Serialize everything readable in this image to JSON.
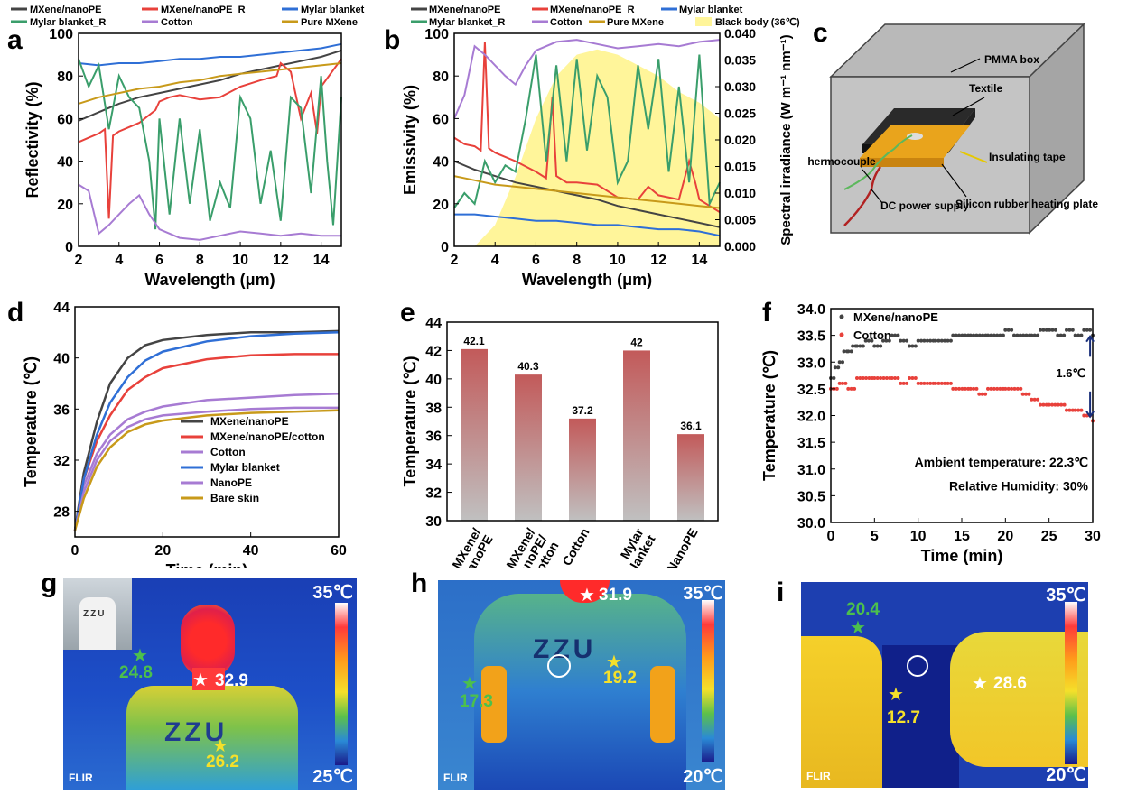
{
  "panels": [
    "a",
    "b",
    "c",
    "d",
    "e",
    "f",
    "g",
    "h",
    "i"
  ],
  "colors": {
    "mxene_nanope": "#444444",
    "mxene_nanope_r": "#e8413b",
    "mylar": "#2f6fd6",
    "mylar_r": "#3a9e6b",
    "cotton": "#a77bd3",
    "pure_mxene": "#c89a1a",
    "blackbody": "#fff59a",
    "bar_top": "#c25a5a",
    "bar_bottom": "#c0c0c0"
  },
  "chart_data": [
    {
      "panel": "a",
      "type": "line",
      "xlabel": "Wavelength (μm)",
      "ylabel": "Reflectivity (%)",
      "xlim": [
        2,
        15
      ],
      "ylim": [
        0,
        100
      ],
      "xticks": [
        "2",
        "4",
        "6",
        "8",
        "10",
        "12",
        "14"
      ],
      "yticks": [
        "0",
        "20",
        "40",
        "60",
        "80",
        "100"
      ],
      "legend": [
        "MXene/nanoPE",
        "MXene/nanoPE_R",
        "Mylar blanket",
        "Mylar blanket_R",
        "Cotton",
        "Pure MXene"
      ],
      "series": [
        {
          "name": "MXene/nanoPE",
          "x": [
            2,
            3,
            4,
            5,
            6,
            7,
            8,
            9,
            10,
            11,
            12,
            13,
            14,
            15
          ],
          "y": [
            59,
            63,
            67,
            70,
            72,
            74,
            76,
            78,
            81,
            83,
            85,
            87,
            89,
            92
          ]
        },
        {
          "name": "MXene/nanoPE_R",
          "x": [
            2,
            2.5,
            3,
            3.3,
            3.5,
            3.7,
            4,
            5,
            5.8,
            6,
            6.5,
            7,
            8,
            9,
            10,
            11,
            11.8,
            12,
            12.5,
            13,
            13.5,
            13.8,
            14,
            15
          ],
          "y": [
            49,
            51,
            53,
            55,
            13,
            52,
            54,
            58,
            64,
            68,
            70,
            71,
            69,
            70,
            75,
            78,
            80,
            86,
            82,
            60,
            72,
            53,
            75,
            88
          ]
        },
        {
          "name": "Mylar blanket",
          "x": [
            2,
            3,
            4,
            5,
            6,
            7,
            8,
            9,
            10,
            11,
            12,
            13,
            14,
            15
          ],
          "y": [
            86,
            85,
            86,
            86,
            87,
            88,
            88,
            89,
            89,
            90,
            91,
            92,
            93,
            95
          ]
        },
        {
          "name": "Mylar blanket_R",
          "x": [
            2,
            2.5,
            3,
            3.5,
            4,
            4.5,
            5,
            5.5,
            5.8,
            6,
            6.5,
            7,
            7.5,
            8,
            8.5,
            9,
            9.5,
            10,
            10.5,
            11,
            11.5,
            12,
            12.5,
            13,
            13.5,
            14,
            14.3,
            14.6,
            15
          ],
          "y": [
            88,
            75,
            85,
            55,
            80,
            70,
            65,
            40,
            8,
            60,
            15,
            60,
            20,
            55,
            12,
            30,
            18,
            70,
            60,
            20,
            45,
            12,
            70,
            65,
            25,
            80,
            40,
            10,
            70
          ]
        },
        {
          "name": "Cotton",
          "x": [
            2,
            2.5,
            3,
            3.5,
            4,
            4.5,
            5,
            5.5,
            6,
            7,
            8,
            9,
            10,
            11,
            12,
            13,
            14,
            15
          ],
          "y": [
            29,
            26,
            6,
            10,
            15,
            20,
            24,
            15,
            8,
            4,
            3,
            5,
            7,
            6,
            5,
            6,
            5,
            5
          ]
        },
        {
          "name": "Pure MXene",
          "x": [
            2,
            3,
            4,
            5,
            6,
            7,
            8,
            9,
            10,
            11,
            12,
            13,
            14,
            15
          ],
          "y": [
            67,
            70,
            72,
            74,
            75,
            77,
            78,
            80,
            81,
            82,
            83,
            84,
            85,
            86
          ]
        }
      ]
    },
    {
      "panel": "b",
      "type": "line",
      "xlabel": "Wavelength (μm)",
      "ylabel": "Emissivity (%)",
      "y2label": "Spectral irradiance (W m⁻¹ nm⁻¹)",
      "xlim": [
        2,
        15
      ],
      "ylim": [
        0,
        100
      ],
      "y2lim": [
        0,
        0.04
      ],
      "xticks": [
        "2",
        "4",
        "6",
        "8",
        "10",
        "12",
        "14"
      ],
      "yticks": [
        "0",
        "20",
        "40",
        "60",
        "80",
        "100"
      ],
      "y2ticks": [
        "0.000",
        "0.005",
        "0.010",
        "0.015",
        "0.020",
        "0.025",
        "0.030",
        "0.035",
        "0.040"
      ],
      "legend": [
        "MXene/nanoPE",
        "MXene/nanoPE_R",
        "Mylar blanket",
        "Mylar blanket_R",
        "Cotton",
        "Pure MXene",
        "Black body (36℃)"
      ],
      "series": [
        {
          "name": "MXene/nanoPE",
          "x": [
            2,
            3,
            4,
            5,
            6,
            7,
            8,
            9,
            10,
            11,
            12,
            13,
            14,
            15
          ],
          "y": [
            40,
            36,
            33,
            30,
            28,
            26,
            24,
            22,
            19,
            17,
            15,
            13,
            11,
            9
          ]
        },
        {
          "name": "MXene/nanoPE_R",
          "x": [
            2,
            2.5,
            3,
            3.3,
            3.5,
            3.7,
            4,
            5,
            6,
            6.5,
            6.8,
            7,
            7.5,
            8,
            9,
            10,
            11,
            11.5,
            12,
            13,
            13.5,
            13.8,
            14,
            15
          ],
          "y": [
            51,
            48,
            47,
            45,
            96,
            46,
            44,
            40,
            35,
            32,
            70,
            33,
            30,
            30,
            29,
            23,
            22,
            28,
            24,
            22,
            40,
            30,
            22,
            16
          ]
        },
        {
          "name": "Mylar blanket",
          "x": [
            2,
            3,
            4,
            5,
            6,
            7,
            8,
            9,
            10,
            11,
            12,
            13,
            14,
            15
          ],
          "y": [
            15,
            15,
            14,
            13,
            12,
            12,
            11,
            10,
            10,
            9,
            8,
            8,
            7,
            5
          ]
        },
        {
          "name": "Mylar blanket_R",
          "x": [
            2,
            2.5,
            3,
            3.5,
            4,
            4.5,
            5,
            5.5,
            6,
            6.5,
            7,
            7.5,
            8,
            8.5,
            9,
            9.5,
            10,
            10.5,
            11,
            11.5,
            12,
            12.5,
            13,
            13.5,
            14,
            14.5,
            15
          ],
          "y": [
            18,
            25,
            20,
            40,
            30,
            38,
            35,
            60,
            90,
            40,
            85,
            40,
            88,
            45,
            80,
            70,
            30,
            40,
            85,
            55,
            88,
            35,
            75,
            30,
            90,
            20,
            30
          ]
        },
        {
          "name": "Cotton",
          "x": [
            2,
            2.5,
            3,
            3.5,
            4,
            4.5,
            5,
            5.5,
            6,
            7,
            8,
            9,
            10,
            11,
            12,
            13,
            14,
            15
          ],
          "y": [
            60,
            71,
            94,
            90,
            85,
            80,
            76,
            85,
            92,
            96,
            97,
            95,
            93,
            94,
            95,
            94,
            96,
            97
          ]
        },
        {
          "name": "Pure MXene",
          "x": [
            2,
            3,
            4,
            5,
            6,
            7,
            8,
            9,
            10,
            11,
            12,
            13,
            14,
            15
          ],
          "y": [
            33,
            31,
            29,
            28,
            27,
            26,
            25,
            24,
            23,
            22,
            21,
            20,
            19,
            18
          ]
        },
        {
          "name": "Black body (36℃)",
          "axis": "y2",
          "x": [
            3,
            4,
            5,
            6,
            7,
            8,
            9,
            10,
            11,
            12,
            13,
            14,
            15
          ],
          "y": [
            0.0,
            0.004,
            0.013,
            0.024,
            0.032,
            0.036,
            0.037,
            0.036,
            0.034,
            0.032,
            0.029,
            0.027,
            0.024
          ]
        }
      ]
    },
    {
      "panel": "d",
      "type": "line",
      "xlabel": "Time (min)",
      "ylabel": "Temperature (℃)",
      "xlim": [
        0,
        60
      ],
      "ylim": [
        26,
        44
      ],
      "xticks": [
        "0",
        "20",
        "40",
        "60"
      ],
      "yticks": [
        "28",
        "32",
        "36",
        "40",
        "44"
      ],
      "legend": [
        "MXene/nanoPE",
        "MXene/nanoPE/cotton",
        "Cotton",
        "Mylar blanket",
        "NanoPE",
        "Bare skin"
      ],
      "series": [
        {
          "name": "MXene/nanoPE",
          "x": [
            0,
            2,
            5,
            8,
            12,
            16,
            20,
            30,
            40,
            50,
            60
          ],
          "y": [
            26.5,
            31,
            35,
            38,
            40,
            41,
            41.4,
            41.8,
            42,
            42,
            42.1
          ]
        },
        {
          "name": "MXene/nanoPE/cotton",
          "x": [
            0,
            2,
            5,
            8,
            12,
            16,
            20,
            30,
            40,
            50,
            60
          ],
          "y": [
            26.5,
            30.5,
            33.5,
            35.5,
            37.5,
            38.5,
            39.2,
            39.9,
            40.2,
            40.3,
            40.3
          ]
        },
        {
          "name": "Cotton",
          "x": [
            0,
            2,
            5,
            8,
            12,
            16,
            20,
            30,
            40,
            50,
            60
          ],
          "y": [
            26.5,
            30,
            32.5,
            34,
            35.2,
            35.8,
            36.2,
            36.7,
            36.9,
            37.1,
            37.2
          ]
        },
        {
          "name": "Mylar blanket",
          "x": [
            0,
            2,
            5,
            8,
            12,
            16,
            20,
            30,
            40,
            50,
            60
          ],
          "y": [
            26.5,
            30.5,
            34,
            36.5,
            38.5,
            39.8,
            40.5,
            41.3,
            41.7,
            41.9,
            42
          ]
        },
        {
          "name": "NanoPE",
          "x": [
            0,
            2,
            5,
            8,
            12,
            16,
            20,
            30,
            40,
            50,
            60
          ],
          "y": [
            26.5,
            29.5,
            32,
            33.5,
            34.6,
            35.2,
            35.5,
            35.8,
            36,
            36.1,
            36.1
          ]
        },
        {
          "name": "Bare skin",
          "x": [
            0,
            2,
            5,
            8,
            12,
            16,
            20,
            30,
            40,
            50,
            60
          ],
          "y": [
            26.5,
            29,
            31.5,
            33,
            34.2,
            34.8,
            35.1,
            35.5,
            35.7,
            35.8,
            35.9
          ]
        }
      ]
    },
    {
      "panel": "e",
      "type": "bar",
      "ylabel": "Temperature (℃)",
      "ylim": [
        30,
        44
      ],
      "yticks": [
        "30",
        "32",
        "34",
        "36",
        "38",
        "40",
        "42",
        "44"
      ],
      "categories": [
        "MXene/ nanoPE",
        "MXene/ nanoPE/ cotton",
        "Cotton",
        "Mylar blanket",
        "NanoPE"
      ],
      "values": [
        42.1,
        40.3,
        37.2,
        42,
        36.1
      ],
      "labels": [
        "42.1",
        "40.3",
        "37.2",
        "42",
        "36.1"
      ]
    },
    {
      "panel": "f",
      "type": "scatter",
      "xlabel": "Time (min)",
      "ylabel": "Temperature (℃)",
      "xlim": [
        0,
        30
      ],
      "ylim": [
        30,
        34
      ],
      "xticks": [
        "0",
        "5",
        "10",
        "15",
        "20",
        "25",
        "30"
      ],
      "yticks": [
        "30.0",
        "30.5",
        "31.0",
        "31.5",
        "32.0",
        "32.5",
        "33.0",
        "33.5",
        "34.0"
      ],
      "legend": [
        "MXene/nanoPE",
        "Cotton"
      ],
      "annotations": [
        "1.6℃",
        "Ambient temperature: 22.3℃",
        "Relative Humidity: 30%"
      ],
      "series": [
        {
          "name": "MXene/nanoPE",
          "segments": [
            [
              0,
              32.7
            ],
            [
              0.5,
              32.9
            ],
            [
              1,
              33.0
            ],
            [
              1.5,
              33.2
            ],
            [
              2,
              33.2
            ],
            [
              2.5,
              33.3
            ],
            [
              3,
              33.3
            ],
            [
              4,
              33.4
            ],
            [
              5,
              33.3
            ],
            [
              6,
              33.4
            ],
            [
              7,
              33.5
            ],
            [
              8,
              33.4
            ],
            [
              9,
              33.3
            ],
            [
              10,
              33.4
            ],
            [
              12,
              33.4
            ],
            [
              14,
              33.5
            ],
            [
              16,
              33.5
            ],
            [
              18,
              33.5
            ],
            [
              20,
              33.6
            ],
            [
              21,
              33.5
            ],
            [
              23,
              33.5
            ],
            [
              24,
              33.6
            ],
            [
              26,
              33.5
            ],
            [
              27,
              33.6
            ],
            [
              28,
              33.5
            ],
            [
              29,
              33.6
            ],
            [
              30,
              33.5
            ]
          ]
        },
        {
          "name": "Cotton",
          "segments": [
            [
              0,
              32.5
            ],
            [
              1,
              32.6
            ],
            [
              2,
              32.5
            ],
            [
              3,
              32.7
            ],
            [
              5,
              32.7
            ],
            [
              7,
              32.7
            ],
            [
              8,
              32.6
            ],
            [
              9,
              32.7
            ],
            [
              10,
              32.6
            ],
            [
              12,
              32.6
            ],
            [
              14,
              32.5
            ],
            [
              16,
              32.5
            ],
            [
              17,
              32.4
            ],
            [
              18,
              32.5
            ],
            [
              20,
              32.5
            ],
            [
              22,
              32.4
            ],
            [
              23,
              32.3
            ],
            [
              24,
              32.2
            ],
            [
              25,
              32.2
            ],
            [
              27,
              32.1
            ],
            [
              28,
              32.1
            ],
            [
              29,
              32.0
            ],
            [
              30,
              31.9
            ]
          ]
        }
      ]
    }
  ],
  "panel_c": {
    "labels": [
      "PMMA box",
      "Textile",
      "Thermocouple",
      "Insulating tape",
      "DC power supply",
      "Silicon rubber heating plate"
    ]
  },
  "panel_g": {
    "top": "35℃",
    "bottom": "25℃",
    "points": [
      "24.8",
      "32.9",
      "26.2"
    ],
    "brand": "FLIR",
    "shirt_text": "ZZU"
  },
  "panel_h": {
    "top": "35℃",
    "bottom": "20℃",
    "points": [
      "31.9",
      "17.3",
      "19.2"
    ],
    "brand": "FLIR",
    "shirt_text": "ZZU"
  },
  "panel_i": {
    "top": "35℃",
    "bottom": "20℃",
    "points": [
      "20.4",
      "28.6",
      "12.7"
    ],
    "brand": "FLIR"
  }
}
